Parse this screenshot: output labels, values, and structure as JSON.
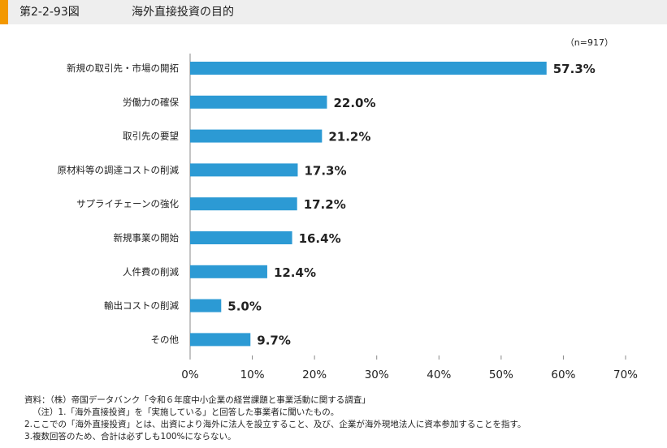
{
  "header": {
    "figure_number": "第2-2-93図",
    "title": "海外直接投資の目的",
    "badge_color": "#f39800"
  },
  "sample_size_label": "（n=917）",
  "chart_data": {
    "type": "bar",
    "orientation": "horizontal",
    "categories": [
      "新規の取引先・市場の開拓",
      "労働力の確保",
      "取引先の要望",
      "原材料等の調達コストの削減",
      "サプライチェーンの強化",
      "新規事業の開始",
      "人件費の削減",
      "輸出コストの削減",
      "その他"
    ],
    "values": [
      57.3,
      22.0,
      21.2,
      17.3,
      17.2,
      16.4,
      12.4,
      5.0,
      9.7
    ],
    "value_labels": [
      "57.3%",
      "22.0%",
      "21.2%",
      "17.3%",
      "17.2%",
      "16.4%",
      "12.4%",
      "5.0%",
      "9.7%"
    ],
    "xlim": [
      0,
      70
    ],
    "xticks": [
      0,
      10,
      20,
      30,
      40,
      50,
      60,
      70
    ],
    "xtick_labels": [
      "0%",
      "10%",
      "20%",
      "30%",
      "40%",
      "50%",
      "60%",
      "70%"
    ],
    "grid": false,
    "bar_color": "#2c9ad4"
  },
  "notes": [
    "資料：（株）帝国データバンク「令和６年度中小企業の経営課題と事業活動に関する調査」",
    "（注）1.「海外直接投資」を「実施している」と回答した事業者に聞いたもの。",
    "2.ここでの「海外直接投資」とは、出資により海外に法人を設立すること、及び、企業が海外現地法人に資本参加することを指す。",
    "3.複数回答のため、合計は必ずしも100%にならない。"
  ]
}
